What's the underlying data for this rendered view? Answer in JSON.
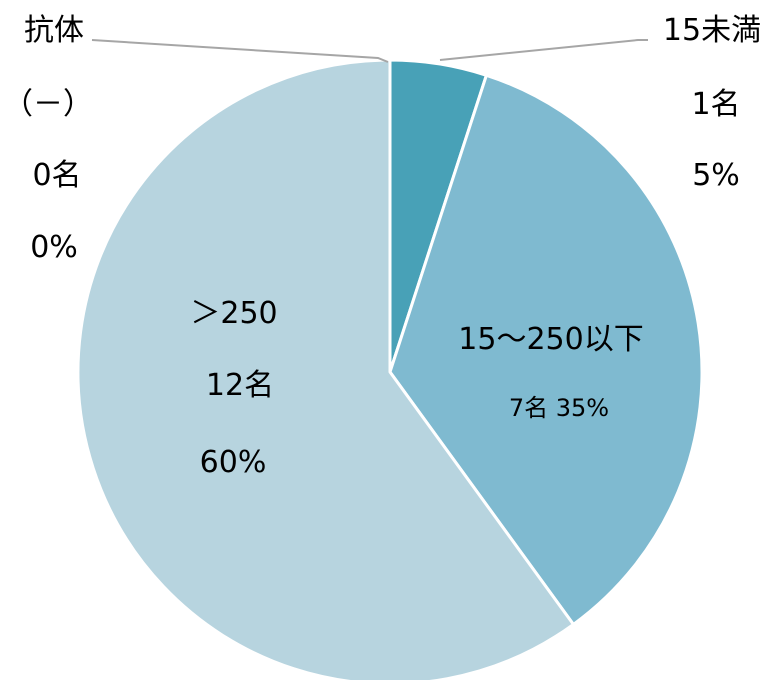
{
  "chart_data": {
    "type": "pie",
    "start_angle_deg": 0,
    "direction": "clockwise",
    "slices": [
      {
        "label": "抗体（－）",
        "count_label": "0名",
        "percent_label": "0%",
        "value": 0,
        "color": "#2f8ca3"
      },
      {
        "label": "15未満",
        "count_label": "1名",
        "percent_label": "5%",
        "value": 1,
        "color": "#48a1b7"
      },
      {
        "label": "15～250以下",
        "count_label": "7名",
        "percent_label": "35%",
        "value": 7,
        "color": "#7fbad0"
      },
      {
        "label": "＞250",
        "count_label": "12名",
        "percent_label": "60%",
        "value": 12,
        "color": "#b7d4df"
      }
    ],
    "data_labels": {
      "s0_line1": "抗体",
      "s0_line2": "（－）",
      "s0_line3": "0名",
      "s0_line4": "0%",
      "s1_line1": "15未満",
      "s1_line2": "1名",
      "s1_line3": "5%",
      "s2_line1": "15～250以下",
      "s2_line2": "7名 35%",
      "s3_line1": "＞250",
      "s3_line2": "12名",
      "s3_line3": "60%"
    },
    "leader_line_color": "#a6a6a6",
    "slice_border_color": "#ffffff"
  }
}
